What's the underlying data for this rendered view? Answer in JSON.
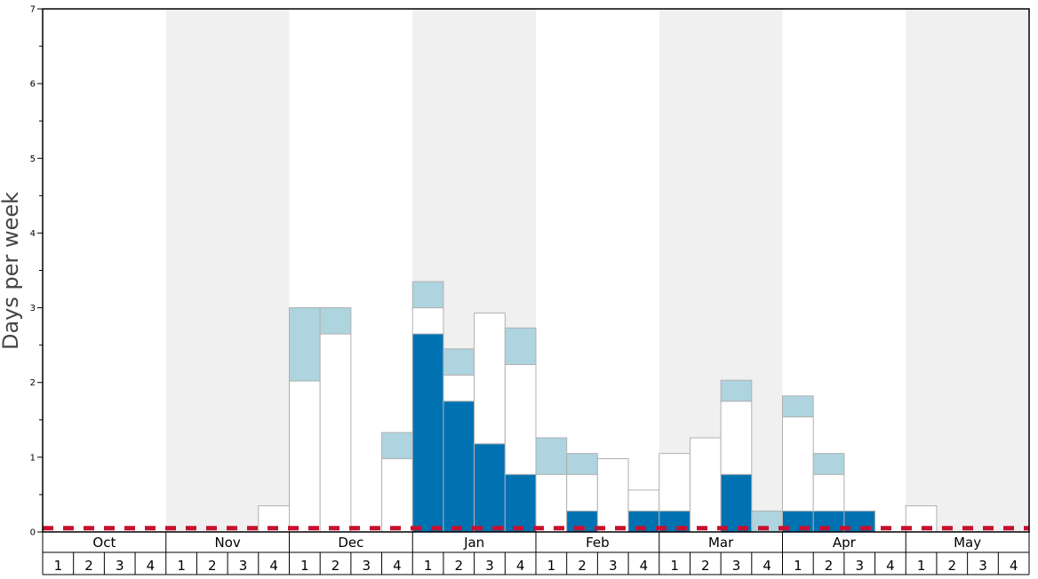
{
  "chart_data": {
    "type": "bar",
    "stacked": true,
    "ylabel": "Days per week",
    "ylim": [
      0,
      7
    ],
    "yticks": [
      0,
      1,
      2,
      3,
      4,
      5,
      6,
      7
    ],
    "months": [
      "Oct",
      "Nov",
      "Dec",
      "Jan",
      "Feb",
      "Mar",
      "Apr",
      "May"
    ],
    "week_labels": [
      "1",
      "2",
      "3",
      "4"
    ],
    "threshold": 0.05,
    "colors": {
      "dark_segment": "#0072b2",
      "white_segment": "#ffffff",
      "light_segment": "#add4df",
      "shade_band": "#f0f0f0",
      "threshold_line": "#c8102e",
      "bar_outline": "#b0b0b0"
    },
    "series": [
      {
        "values": [
          0,
          0,
          0,
          0,
          0,
          0,
          0,
          0,
          0,
          0,
          0,
          0,
          2.65,
          1.75,
          1.18,
          0.77,
          0,
          0.28,
          0,
          0.28,
          0.28,
          0,
          0.77,
          0,
          0.28,
          0.28,
          0.28,
          0,
          0,
          0,
          0,
          0
        ]
      },
      {
        "values": [
          0,
          0,
          0,
          0,
          0,
          0,
          0,
          0.35,
          2.02,
          2.65,
          0,
          0.98,
          0.35,
          0.35,
          1.75,
          1.47,
          0.77,
          0.49,
          0.98,
          0.28,
          0.77,
          1.26,
          0.98,
          0,
          1.26,
          0.49,
          0,
          0,
          0.35,
          0,
          0,
          0
        ]
      },
      {
        "values": [
          0,
          0,
          0,
          0,
          0,
          0,
          0,
          0,
          0.98,
          0.35,
          0,
          0.35,
          0.35,
          0.35,
          0,
          0.49,
          0.49,
          0.28,
          0,
          0,
          0,
          0,
          0.28,
          0.28,
          0.28,
          0.28,
          0,
          0,
          0,
          0,
          0,
          0
        ]
      }
    ]
  }
}
